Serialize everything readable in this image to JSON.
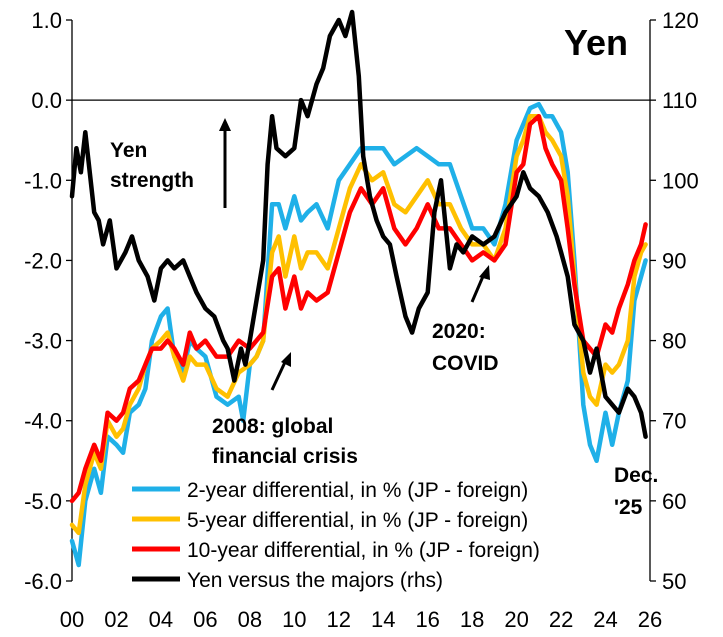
{
  "chart_data": {
    "type": "line",
    "title": "Yen",
    "x_tick_labels": [
      "00",
      "02",
      "04",
      "06",
      "08",
      "10",
      "12",
      "14",
      "16",
      "18",
      "20",
      "22",
      "24",
      "26"
    ],
    "xlim": [
      2000,
      2026
    ],
    "ylim_left": [
      -6.0,
      1.0
    ],
    "left_tick_labels": [
      "1.0",
      "0.0",
      "-1.0",
      "-2.0",
      "-3.0",
      "-4.0",
      "-5.0",
      "-6.0"
    ],
    "ylim_right": [
      50,
      120
    ],
    "right_tick_labels": [
      "120",
      "110",
      "100",
      "90",
      "80",
      "70",
      "60",
      "50"
    ],
    "series": [
      {
        "name": "2-year differential, in % (JP - foreign)",
        "axis": "left",
        "color": "#1fb0e8",
        "points": [
          [
            2000.0,
            -5.5
          ],
          [
            2000.3,
            -5.8
          ],
          [
            2000.6,
            -5.0
          ],
          [
            2001.0,
            -4.6
          ],
          [
            2001.3,
            -4.9
          ],
          [
            2001.6,
            -4.2
          ],
          [
            2002.0,
            -4.3
          ],
          [
            2002.3,
            -4.4
          ],
          [
            2002.6,
            -3.9
          ],
          [
            2003.0,
            -3.8
          ],
          [
            2003.3,
            -3.6
          ],
          [
            2003.6,
            -3.0
          ],
          [
            2004.0,
            -2.7
          ],
          [
            2004.3,
            -2.6
          ],
          [
            2004.6,
            -3.2
          ],
          [
            2005.0,
            -3.4
          ],
          [
            2005.3,
            -3.0
          ],
          [
            2005.6,
            -3.1
          ],
          [
            2006.0,
            -3.2
          ],
          [
            2006.5,
            -3.7
          ],
          [
            2007.0,
            -3.8
          ],
          [
            2007.5,
            -3.7
          ],
          [
            2007.7,
            -4.0
          ],
          [
            2008.0,
            -3.3
          ],
          [
            2008.3,
            -3.2
          ],
          [
            2008.6,
            -3.0
          ],
          [
            2009.0,
            -1.3
          ],
          [
            2009.3,
            -1.3
          ],
          [
            2009.6,
            -1.6
          ],
          [
            2010.0,
            -1.2
          ],
          [
            2010.3,
            -1.5
          ],
          [
            2010.6,
            -1.4
          ],
          [
            2011.0,
            -1.3
          ],
          [
            2011.5,
            -1.6
          ],
          [
            2012.0,
            -1.0
          ],
          [
            2012.5,
            -0.8
          ],
          [
            2013.0,
            -0.6
          ],
          [
            2013.5,
            -0.6
          ],
          [
            2014.0,
            -0.6
          ],
          [
            2014.5,
            -0.8
          ],
          [
            2015.0,
            -0.7
          ],
          [
            2015.5,
            -0.6
          ],
          [
            2016.0,
            -0.7
          ],
          [
            2016.5,
            -0.8
          ],
          [
            2017.0,
            -0.8
          ],
          [
            2017.5,
            -1.2
          ],
          [
            2018.0,
            -1.6
          ],
          [
            2018.5,
            -1.6
          ],
          [
            2019.0,
            -1.8
          ],
          [
            2019.5,
            -1.3
          ],
          [
            2020.0,
            -0.5
          ],
          [
            2020.3,
            -0.3
          ],
          [
            2020.6,
            -0.1
          ],
          [
            2021.0,
            -0.05
          ],
          [
            2021.3,
            -0.2
          ],
          [
            2021.6,
            -0.2
          ],
          [
            2022.0,
            -0.4
          ],
          [
            2022.3,
            -0.9
          ],
          [
            2022.6,
            -2.0
          ],
          [
            2023.0,
            -3.8
          ],
          [
            2023.3,
            -4.3
          ],
          [
            2023.6,
            -4.5
          ],
          [
            2024.0,
            -3.9
          ],
          [
            2024.3,
            -4.3
          ],
          [
            2024.6,
            -3.9
          ],
          [
            2025.0,
            -3.5
          ],
          [
            2025.3,
            -2.5
          ],
          [
            2025.6,
            -2.2
          ],
          [
            2025.8,
            -2.0
          ]
        ]
      },
      {
        "name": "5-year differential, in % (JP - foreign)",
        "axis": "left",
        "color": "#ffc000",
        "points": [
          [
            2000.0,
            -5.3
          ],
          [
            2000.3,
            -5.4
          ],
          [
            2000.6,
            -4.8
          ],
          [
            2001.0,
            -4.4
          ],
          [
            2001.3,
            -4.6
          ],
          [
            2001.6,
            -4.0
          ],
          [
            2002.0,
            -4.2
          ],
          [
            2002.3,
            -4.1
          ],
          [
            2002.6,
            -3.8
          ],
          [
            2003.0,
            -3.6
          ],
          [
            2003.3,
            -3.3
          ],
          [
            2003.6,
            -3.1
          ],
          [
            2004.0,
            -3.0
          ],
          [
            2004.3,
            -2.9
          ],
          [
            2004.6,
            -3.2
          ],
          [
            2005.0,
            -3.5
          ],
          [
            2005.3,
            -3.2
          ],
          [
            2005.6,
            -3.3
          ],
          [
            2006.0,
            -3.3
          ],
          [
            2006.5,
            -3.6
          ],
          [
            2007.0,
            -3.7
          ],
          [
            2007.5,
            -3.4
          ],
          [
            2008.0,
            -3.3
          ],
          [
            2008.3,
            -3.2
          ],
          [
            2008.6,
            -3.0
          ],
          [
            2009.0,
            -1.9
          ],
          [
            2009.3,
            -1.7
          ],
          [
            2009.6,
            -2.2
          ],
          [
            2010.0,
            -1.7
          ],
          [
            2010.3,
            -2.1
          ],
          [
            2010.6,
            -1.9
          ],
          [
            2011.0,
            -1.9
          ],
          [
            2011.5,
            -2.1
          ],
          [
            2012.0,
            -1.6
          ],
          [
            2012.5,
            -1.1
          ],
          [
            2013.0,
            -0.8
          ],
          [
            2013.5,
            -1.0
          ],
          [
            2014.0,
            -0.9
          ],
          [
            2014.5,
            -1.3
          ],
          [
            2015.0,
            -1.4
          ],
          [
            2015.5,
            -1.2
          ],
          [
            2016.0,
            -1.0
          ],
          [
            2016.5,
            -1.3
          ],
          [
            2017.0,
            -1.3
          ],
          [
            2017.5,
            -1.6
          ],
          [
            2018.0,
            -1.8
          ],
          [
            2018.5,
            -1.8
          ],
          [
            2019.0,
            -2.0
          ],
          [
            2019.5,
            -1.6
          ],
          [
            2020.0,
            -0.7
          ],
          [
            2020.3,
            -0.5
          ],
          [
            2020.6,
            -0.2
          ],
          [
            2021.0,
            -0.2
          ],
          [
            2021.3,
            -0.4
          ],
          [
            2021.6,
            -0.5
          ],
          [
            2022.0,
            -0.7
          ],
          [
            2022.3,
            -1.2
          ],
          [
            2022.6,
            -2.2
          ],
          [
            2023.0,
            -3.4
          ],
          [
            2023.3,
            -3.7
          ],
          [
            2023.6,
            -3.8
          ],
          [
            2024.0,
            -3.3
          ],
          [
            2024.3,
            -3.4
          ],
          [
            2024.6,
            -3.3
          ],
          [
            2025.0,
            -3.0
          ],
          [
            2025.3,
            -2.2
          ],
          [
            2025.6,
            -1.9
          ],
          [
            2025.8,
            -1.8
          ]
        ]
      },
      {
        "name": "10-year differential, in % (JP - foreign)",
        "axis": "left",
        "color": "#ff0000",
        "points": [
          [
            2000.0,
            -5.0
          ],
          [
            2000.3,
            -4.9
          ],
          [
            2000.6,
            -4.6
          ],
          [
            2001.0,
            -4.3
          ],
          [
            2001.3,
            -4.5
          ],
          [
            2001.6,
            -3.9
          ],
          [
            2002.0,
            -4.0
          ],
          [
            2002.3,
            -3.9
          ],
          [
            2002.6,
            -3.6
          ],
          [
            2003.0,
            -3.5
          ],
          [
            2003.3,
            -3.3
          ],
          [
            2003.6,
            -3.1
          ],
          [
            2004.0,
            -3.1
          ],
          [
            2004.3,
            -3.0
          ],
          [
            2004.6,
            -3.1
          ],
          [
            2005.0,
            -3.3
          ],
          [
            2005.3,
            -2.9
          ],
          [
            2005.6,
            -3.1
          ],
          [
            2006.0,
            -3.0
          ],
          [
            2006.5,
            -3.2
          ],
          [
            2007.0,
            -3.2
          ],
          [
            2007.5,
            -3.0
          ],
          [
            2008.0,
            -3.1
          ],
          [
            2008.3,
            -3.0
          ],
          [
            2008.6,
            -2.9
          ],
          [
            2009.0,
            -2.2
          ],
          [
            2009.3,
            -2.1
          ],
          [
            2009.6,
            -2.6
          ],
          [
            2010.0,
            -2.2
          ],
          [
            2010.3,
            -2.6
          ],
          [
            2010.6,
            -2.4
          ],
          [
            2011.0,
            -2.5
          ],
          [
            2011.5,
            -2.4
          ],
          [
            2012.0,
            -1.9
          ],
          [
            2012.5,
            -1.4
          ],
          [
            2013.0,
            -1.1
          ],
          [
            2013.5,
            -1.3
          ],
          [
            2014.0,
            -1.1
          ],
          [
            2014.5,
            -1.6
          ],
          [
            2015.0,
            -1.8
          ],
          [
            2015.5,
            -1.6
          ],
          [
            2016.0,
            -1.3
          ],
          [
            2016.5,
            -1.6
          ],
          [
            2017.0,
            -1.6
          ],
          [
            2017.5,
            -1.8
          ],
          [
            2018.0,
            -2.0
          ],
          [
            2018.5,
            -1.9
          ],
          [
            2019.0,
            -2.0
          ],
          [
            2019.5,
            -1.8
          ],
          [
            2020.0,
            -0.9
          ],
          [
            2020.3,
            -0.8
          ],
          [
            2020.6,
            -0.3
          ],
          [
            2021.0,
            -0.2
          ],
          [
            2021.3,
            -0.6
          ],
          [
            2021.6,
            -0.8
          ],
          [
            2022.0,
            -1.0
          ],
          [
            2022.3,
            -1.6
          ],
          [
            2022.6,
            -2.3
          ],
          [
            2023.0,
            -3.0
          ],
          [
            2023.3,
            -3.1
          ],
          [
            2023.6,
            -3.2
          ],
          [
            2024.0,
            -2.8
          ],
          [
            2024.3,
            -2.9
          ],
          [
            2024.6,
            -2.6
          ],
          [
            2025.0,
            -2.3
          ],
          [
            2025.3,
            -2.0
          ],
          [
            2025.6,
            -1.8
          ],
          [
            2025.8,
            -1.55
          ]
        ]
      },
      {
        "name": "Yen versus the majors (rhs)",
        "axis": "right",
        "color": "#000000",
        "points": [
          [
            2000.0,
            98
          ],
          [
            2000.2,
            104
          ],
          [
            2000.4,
            101
          ],
          [
            2000.6,
            106
          ],
          [
            2001.0,
            96
          ],
          [
            2001.2,
            95
          ],
          [
            2001.4,
            92
          ],
          [
            2001.7,
            95
          ],
          [
            2002.0,
            89
          ],
          [
            2002.4,
            91
          ],
          [
            2002.7,
            93
          ],
          [
            2003.0,
            90
          ],
          [
            2003.4,
            88
          ],
          [
            2003.7,
            85
          ],
          [
            2004.0,
            89
          ],
          [
            2004.3,
            90
          ],
          [
            2004.6,
            89
          ],
          [
            2005.0,
            90
          ],
          [
            2005.3,
            88
          ],
          [
            2005.6,
            86
          ],
          [
            2006.0,
            84
          ],
          [
            2006.4,
            83
          ],
          [
            2006.8,
            80
          ],
          [
            2007.0,
            79
          ],
          [
            2007.3,
            75
          ],
          [
            2007.6,
            79
          ],
          [
            2007.8,
            77
          ],
          [
            2008.0,
            80
          ],
          [
            2008.3,
            85
          ],
          [
            2008.6,
            90
          ],
          [
            2008.8,
            102
          ],
          [
            2009.0,
            108
          ],
          [
            2009.2,
            104
          ],
          [
            2009.6,
            103
          ],
          [
            2010.0,
            104
          ],
          [
            2010.3,
            110
          ],
          [
            2010.6,
            108
          ],
          [
            2011.0,
            112
          ],
          [
            2011.3,
            114
          ],
          [
            2011.6,
            118
          ],
          [
            2012.0,
            120
          ],
          [
            2012.3,
            118
          ],
          [
            2012.6,
            121
          ],
          [
            2012.9,
            113
          ],
          [
            2013.1,
            103
          ],
          [
            2013.4,
            98
          ],
          [
            2013.7,
            95
          ],
          [
            2014.0,
            93
          ],
          [
            2014.3,
            92
          ],
          [
            2014.6,
            88
          ],
          [
            2015.0,
            83
          ],
          [
            2015.3,
            81
          ],
          [
            2015.6,
            84
          ],
          [
            2016.0,
            86
          ],
          [
            2016.3,
            96
          ],
          [
            2016.6,
            100
          ],
          [
            2017.0,
            89
          ],
          [
            2017.3,
            92
          ],
          [
            2017.6,
            91
          ],
          [
            2018.0,
            93
          ],
          [
            2018.5,
            92
          ],
          [
            2019.0,
            93
          ],
          [
            2019.5,
            96
          ],
          [
            2020.0,
            98
          ],
          [
            2020.3,
            101
          ],
          [
            2020.6,
            99
          ],
          [
            2021.0,
            98
          ],
          [
            2021.4,
            96
          ],
          [
            2021.8,
            93
          ],
          [
            2022.0,
            91
          ],
          [
            2022.3,
            88
          ],
          [
            2022.6,
            82
          ],
          [
            2023.0,
            80
          ],
          [
            2023.3,
            76
          ],
          [
            2023.6,
            79
          ],
          [
            2024.0,
            73
          ],
          [
            2024.3,
            72
          ],
          [
            2024.6,
            71
          ],
          [
            2025.0,
            74
          ],
          [
            2025.3,
            73
          ],
          [
            2025.6,
            71
          ],
          [
            2025.8,
            68
          ]
        ]
      }
    ],
    "annotations": {
      "yen_strength": [
        "Yen",
        "strength"
      ],
      "gfc": [
        "2008: global",
        "financial crisis"
      ],
      "covid": [
        "2020:",
        "COVID"
      ],
      "dec": [
        "Dec.",
        "'25"
      ]
    }
  }
}
